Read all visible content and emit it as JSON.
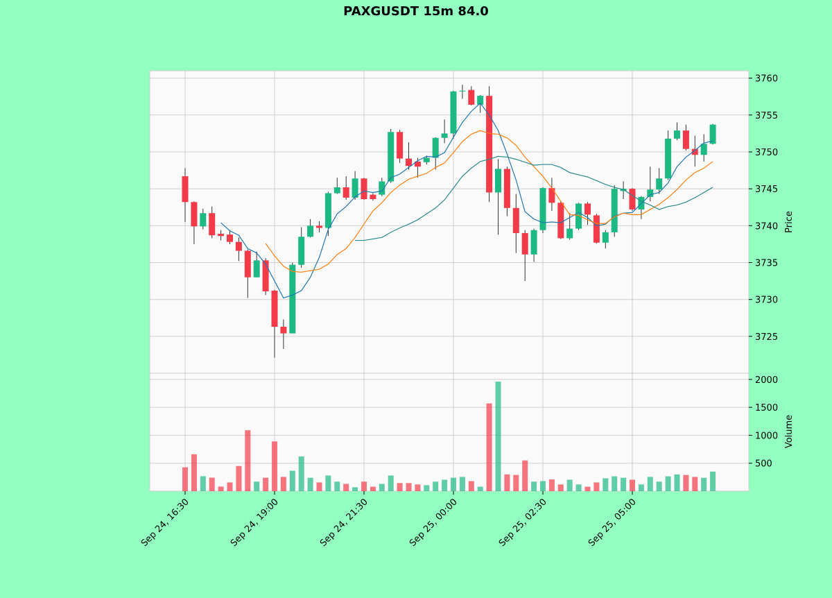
{
  "chart_data": {
    "type": "candlestick",
    "title": "PAXGUSDT 15m 84.0",
    "categories": [
      "Sep 24, 16:30",
      null,
      null,
      null,
      null,
      null,
      null,
      null,
      null,
      null,
      "Sep 24, 19:00",
      null,
      null,
      null,
      null,
      null,
      null,
      null,
      null,
      null,
      "Sep 24, 21:30",
      null,
      null,
      null,
      null,
      null,
      null,
      null,
      null,
      null,
      "Sep 25, 00:00",
      null,
      null,
      null,
      null,
      null,
      null,
      null,
      null,
      null,
      "Sep 25, 02:30",
      null,
      null,
      null,
      null,
      null,
      null,
      null,
      null,
      null,
      "Sep 25, 05:00",
      null,
      null,
      null,
      null,
      null,
      null,
      null,
      null,
      null
    ],
    "open": [
      3746.7,
      3743.2,
      3739.9,
      3741.7,
      3738.9,
      3738.8,
      3737.8,
      3736.6,
      3733.0,
      3735.3,
      3731.2,
      3726.3,
      3725.4,
      3734.7,
      3738.5,
      3740.0,
      3739.7,
      3744.4,
      3745.2,
      3743.8,
      3746.4,
      3744.2,
      3744.2,
      3746.0,
      3752.7,
      3749.1,
      3748.7,
      3748.6,
      3749.2,
      3751.9,
      3752.5,
      3758.2,
      3758.4,
      3756.4,
      3757.6,
      3744.5,
      3747.7,
      3742.4,
      3739.0,
      3736.1,
      3739.4,
      3745.1,
      3743.1,
      3738.3,
      3739.6,
      3743.0,
      3741.4,
      3737.7,
      3739.1,
      3744.7,
      3745.0,
      3742.2,
      3743.9,
      3744.9,
      3746.4,
      3751.8,
      3752.9,
      3750.4,
      3749.6,
      3751.1
    ],
    "high": [
      3747.8,
      3743.3,
      3742.3,
      3742.6,
      3739.4,
      3739.4,
      3738.4,
      3736.8,
      3736.5,
      3735.6,
      3731.3,
      3727.3,
      3735.0,
      3739.8,
      3740.9,
      3740.6,
      3744.6,
      3746.5,
      3746.7,
      3747.4,
      3746.5,
      3744.4,
      3746.5,
      3753.1,
      3753.0,
      3751.3,
      3749.2,
      3749.5,
      3752.0,
      3754.4,
      3758.3,
      3759.1,
      3758.9,
      3757.7,
      3758.9,
      3749.0,
      3748.0,
      3744.3,
      3739.4,
      3739.6,
      3745.2,
      3746.5,
      3743.3,
      3741.7,
      3743.1,
      3743.2,
      3741.6,
      3739.4,
      3745.5,
      3746.0,
      3745.1,
      3744.0,
      3748.0,
      3747.8,
      3752.9,
      3754.0,
      3753.7,
      3752.2,
      3752.4,
      3753.8
    ],
    "low": [
      3740.5,
      3737.5,
      3739.5,
      3738.3,
      3738.0,
      3737.5,
      3735.2,
      3730.2,
      3733.0,
      3730.6,
      3722.1,
      3723.3,
      3725.4,
      3734.3,
      3738.4,
      3739.1,
      3738.6,
      3744.3,
      3743.5,
      3743.5,
      3743.5,
      3743.4,
      3744.0,
      3745.8,
      3748.5,
      3747.6,
      3746.5,
      3748.3,
      3747.6,
      3751.2,
      3751.8,
      3757.2,
      3756.3,
      3755.3,
      3743.2,
      3738.8,
      3741.3,
      3736.3,
      3732.5,
      3735.1,
      3739.0,
      3742.0,
      3738.2,
      3738.1,
      3739.4,
      3740.1,
      3737.6,
      3736.9,
      3738.5,
      3743.6,
      3742.0,
      3740.9,
      3743.3,
      3744.3,
      3746.2,
      3751.6,
      3750.2,
      3748.0,
      3748.7,
      3751.0
    ],
    "close": [
      3743.2,
      3739.9,
      3741.7,
      3738.7,
      3738.6,
      3737.8,
      3736.6,
      3733.0,
      3735.3,
      3731.1,
      3726.3,
      3725.4,
      3734.7,
      3738.5,
      3740.0,
      3739.7,
      3744.4,
      3745.2,
      3743.8,
      3746.4,
      3743.6,
      3743.6,
      3746.0,
      3752.7,
      3749.1,
      3748.1,
      3748.0,
      3749.2,
      3751.9,
      3752.5,
      3758.2,
      3758.3,
      3756.4,
      3757.6,
      3744.5,
      3747.7,
      3742.4,
      3739.0,
      3736.1,
      3739.4,
      3745.1,
      3743.1,
      3738.3,
      3739.6,
      3743.0,
      3741.5,
      3737.7,
      3739.1,
      3745.0,
      3745.0,
      3742.2,
      3743.9,
      3744.9,
      3746.4,
      3751.8,
      3752.9,
      3750.4,
      3749.6,
      3751.1,
      3753.7
    ],
    "volume": [
      427,
      660,
      267,
      242,
      82,
      156,
      450,
      1090,
      170,
      240,
      890,
      255,
      365,
      620,
      240,
      156,
      280,
      170,
      130,
      70,
      170,
      80,
      130,
      280,
      145,
      145,
      120,
      107,
      170,
      204,
      240,
      255,
      180,
      80,
      1570,
      1960,
      300,
      290,
      550,
      170,
      180,
      210,
      120,
      205,
      120,
      80,
      156,
      230,
      265,
      240,
      205,
      120,
      255,
      170,
      265,
      300,
      290,
      255,
      240,
      350
    ],
    "up_color": "#1db982",
    "down_color": "#f23a48",
    "moving_averages": [
      {
        "color": "#1f77b4",
        "values": [
          null,
          null,
          null,
          null,
          3740.4,
          3739.3,
          3738.7,
          3736.9,
          3736.3,
          3734.8,
          3732.5,
          3730.2,
          3730.6,
          3731.2,
          3733.0,
          3735.7,
          3739.5,
          3741.6,
          3742.6,
          3743.9,
          3744.7,
          3744.5,
          3744.7,
          3746.5,
          3747.0,
          3747.9,
          3748.8,
          3749.4,
          3749.3,
          3749.9,
          3752.0,
          3754.0,
          3755.5,
          3756.6,
          3755.0,
          3752.9,
          3749.7,
          3746.2,
          3741.9,
          3740.9,
          3740.4,
          3740.5,
          3740.4,
          3741.1,
          3741.8,
          3741.1,
          3740.0,
          3740.2,
          3741.3,
          3741.7,
          3741.8,
          3743.0,
          3744.2,
          3744.5,
          3745.8,
          3748.0,
          3749.3,
          3750.2,
          3751.2,
          3751.5
        ]
      },
      {
        "color": "#ff7f0e",
        "values": [
          null,
          null,
          null,
          null,
          null,
          null,
          null,
          null,
          null,
          3737.6,
          3735.9,
          3734.5,
          3733.8,
          3733.7,
          3733.9,
          3734.1,
          3734.8,
          3736.1,
          3736.9,
          3738.4,
          3740.2,
          3742.0,
          3743.1,
          3744.5,
          3745.5,
          3746.3,
          3746.7,
          3747.1,
          3747.9,
          3748.5,
          3749.9,
          3751.4,
          3752.4,
          3752.9,
          3752.5,
          3752.4,
          3751.9,
          3750.9,
          3749.3,
          3748.0,
          3746.7,
          3745.1,
          3743.3,
          3741.5,
          3741.4,
          3740.8,
          3740.3,
          3740.3,
          3741.2,
          3741.7,
          3741.5,
          3741.5,
          3742.2,
          3742.9,
          3743.8,
          3744.9,
          3746.2,
          3747.2,
          3747.8,
          3748.7
        ]
      },
      {
        "color": "#2a8a8c",
        "values": [
          null,
          null,
          null,
          null,
          null,
          null,
          null,
          null,
          null,
          null,
          null,
          null,
          null,
          null,
          null,
          null,
          null,
          null,
          null,
          3738.0,
          3738.0,
          3738.2,
          3738.4,
          3739.1,
          3739.7,
          3740.2,
          3740.8,
          3741.6,
          3742.4,
          3743.5,
          3745.1,
          3746.7,
          3747.8,
          3748.7,
          3749.0,
          3749.4,
          3749.3,
          3749.0,
          3748.6,
          3748.2,
          3748.3,
          3748.3,
          3747.9,
          3747.2,
          3746.9,
          3746.6,
          3746.1,
          3745.6,
          3745.2,
          3744.9,
          3744.1,
          3743.3,
          3742.8,
          3742.2,
          3742.6,
          3742.8,
          3743.2,
          3743.8,
          3744.5,
          3745.2
        ]
      }
    ],
    "ylabel": "Price",
    "ylim": [
      3720,
      3761
    ],
    "yticks": [
      3725,
      3730,
      3735,
      3740,
      3745,
      3750,
      3755,
      3760
    ],
    "volume_label": "Volume",
    "volume_ylim": [
      0,
      2110
    ],
    "volume_yticks": [
      500,
      1000,
      1500,
      2000
    ],
    "grid": true
  }
}
